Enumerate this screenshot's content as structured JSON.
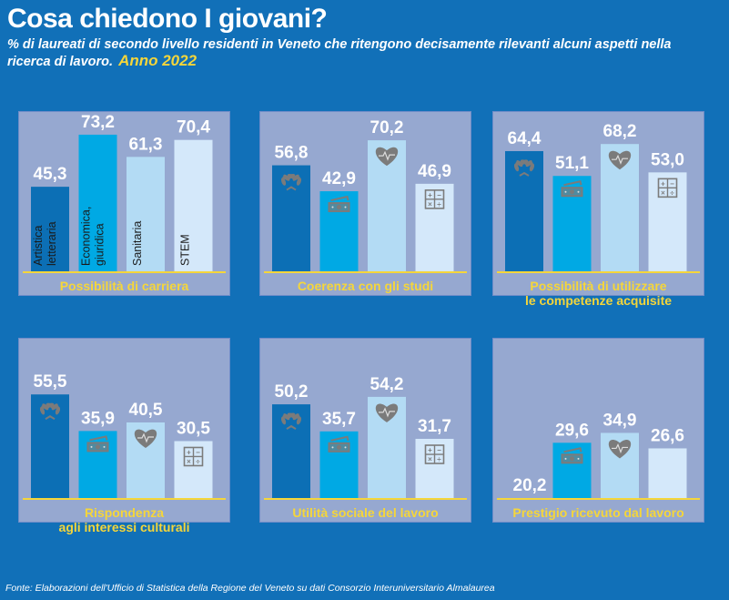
{
  "header": {
    "title": "Cosa chiedono I giovani?",
    "subtitle": "% di laureati di secondo livello residenti in Veneto che ritengono decisamente rilevanti alcuni aspetti nella ricerca di lavoro.",
    "year_label": "Anno 2022"
  },
  "footer": {
    "source": "Fonte: Elaborazioni dell'Ufficio di Statistica della Regione del Veneto su dati Consorzio Interuniversitario Almalaurea"
  },
  "colors": {
    "background": "#1170b8",
    "panel": "#96a8d0",
    "accent_yellow": "#f5d63a",
    "icon_gray": "#7b7b7b",
    "series": [
      "#0c6fb5",
      "#00a9e4",
      "#b3dbf4",
      "#d4e8fa"
    ]
  },
  "chart_data": {
    "type": "bar",
    "title": "Cosa chiedono I giovani?",
    "xlabel": "",
    "ylabel": "%",
    "ylim": [
      0,
      80
    ],
    "categories": [
      "Artistica letteraria",
      "Economica, giuridica",
      "Sanitaria",
      "STEM"
    ],
    "category_icons": [
      "laurel-icon",
      "money-icon",
      "heart-icon",
      "calculator-icon"
    ],
    "panels": [
      {
        "title": [
          "Possibilità di carriera"
        ],
        "values": [
          45.3,
          73.2,
          61.3,
          70.4
        ],
        "labels": [
          "45,3",
          "73,2",
          "61,3",
          "70,4"
        ],
        "show_category_text": true
      },
      {
        "title": [
          "Coerenza con gli studi"
        ],
        "values": [
          56.8,
          42.9,
          70.2,
          46.9
        ],
        "labels": [
          "56,8",
          "42,9",
          "70,2",
          "46,9"
        ]
      },
      {
        "title": [
          "Possibilità di utilizzare",
          "le competenze acquisite"
        ],
        "values": [
          64.4,
          51.1,
          68.2,
          53.0
        ],
        "labels": [
          "64,4",
          "51,1",
          "68,2",
          "53,0"
        ]
      },
      {
        "title": [
          "Rispondenza",
          "agli interessi culturali"
        ],
        "values": [
          55.5,
          35.9,
          40.5,
          30.5
        ],
        "labels": [
          "55,5",
          "35,9",
          "40,5",
          "30,5"
        ]
      },
      {
        "title": [
          "Utilità sociale del lavoro"
        ],
        "values": [
          50.2,
          35.7,
          54.2,
          31.7
        ],
        "labels": [
          "50,2",
          "35,7",
          "54,2",
          "31,7"
        ]
      },
      {
        "title": [
          "Prestigio ricevuto dal lavoro"
        ],
        "values": [
          20.2,
          29.6,
          34.9,
          26.6
        ],
        "labels": [
          "20,2",
          "29,6",
          "34,9",
          "26,6"
        ]
      }
    ]
  }
}
